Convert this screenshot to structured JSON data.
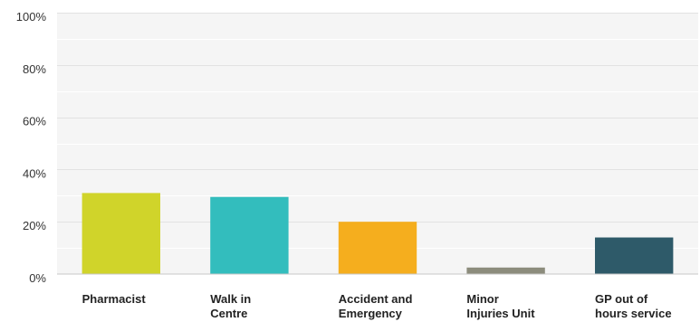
{
  "chart_data": {
    "type": "bar",
    "categories": [
      [
        "Pharmacist"
      ],
      [
        "Walk in",
        "Centre"
      ],
      [
        "Accident and",
        "Emergency"
      ],
      [
        "Minor",
        "Injuries Unit"
      ],
      [
        "GP out of",
        "hours service"
      ]
    ],
    "values": [
      31,
      29.5,
      20,
      2.5,
      14
    ],
    "colors": [
      "#d0d42a",
      "#33bdbd",
      "#f5ae1e",
      "#8c8c7c",
      "#2e5a69"
    ],
    "ylim": [
      0,
      100
    ],
    "y_ticks": [
      "0%",
      "20%",
      "40%",
      "60%",
      "80%",
      "100%"
    ],
    "y_tick_values": [
      0,
      20,
      40,
      60,
      80,
      100
    ],
    "grid": true,
    "plot_background": "#f5f5f5",
    "title": "",
    "xlabel": "",
    "ylabel": ""
  }
}
